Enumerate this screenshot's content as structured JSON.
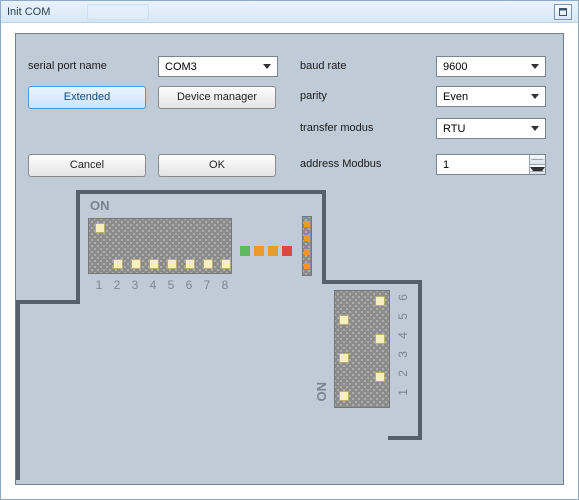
{
  "window": {
    "title": "Init COM"
  },
  "labels": {
    "serial_port": "serial port name",
    "baud_rate": "baud rate",
    "parity": "parity",
    "transfer_modus": "transfer modus",
    "address_modbus": "address Modbus"
  },
  "buttons": {
    "extended": "Extended",
    "device_manager": "Device manager",
    "cancel": "Cancel",
    "ok": "OK"
  },
  "values": {
    "port": "COM3",
    "baud": "9600",
    "parity": "Even",
    "modus": "RTU",
    "address": "1"
  },
  "diagram": {
    "on_label": "ON",
    "dip1": {
      "count": 8,
      "labels": [
        "1",
        "2",
        "3",
        "4",
        "5",
        "6",
        "7",
        "8"
      ],
      "positions": [
        "up",
        "down",
        "down",
        "down",
        "down",
        "down",
        "down",
        "down"
      ]
    },
    "dip2": {
      "count": 6,
      "labels": [
        "1",
        "2",
        "3",
        "4",
        "5",
        "6"
      ],
      "positions": [
        "down",
        "up",
        "down",
        "up",
        "down",
        "up"
      ]
    },
    "leds_row": [
      {
        "color": "#5fb75f"
      },
      {
        "color": "#e89a2a"
      },
      {
        "color": "#e89a2a"
      },
      {
        "color": "#d84b3a"
      }
    ],
    "leds_strip": [
      {
        "color": "#e89a2a"
      },
      {
        "color": "#e89a2a"
      },
      {
        "color": "#e89a2a"
      },
      {
        "color": "#e89a2a"
      }
    ],
    "trace_color": "#55606b",
    "panel_bg": "#bfcbd6"
  }
}
